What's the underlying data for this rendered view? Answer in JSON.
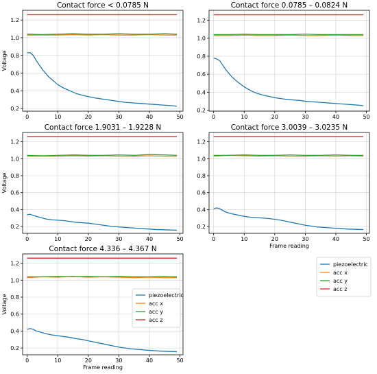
{
  "colors": {
    "piezoelectric": "#1f77b4",
    "acc x": "#ff7f0e",
    "acc y": "#2ca02c",
    "acc z": "#d62728"
  },
  "chart_data": [
    {
      "type": "line",
      "title": "Contact force < 0.0785 N",
      "ylabel": "Voltage",
      "xlabel": "",
      "xlim": [
        -1.5,
        51
      ],
      "ylim": [
        0.17,
        1.31
      ],
      "xticks": [
        "0",
        "10",
        "20",
        "30",
        "40",
        "50"
      ],
      "yticks": [
        "0.2",
        "0.4",
        "0.6",
        "0.8",
        "1.0",
        "1.2"
      ],
      "legend": "",
      "series": [
        {
          "key": "piezoelectric",
          "x": [
            0,
            1,
            2,
            3,
            4,
            5,
            6,
            7,
            8,
            10,
            12,
            14,
            16,
            18,
            20,
            22,
            24,
            26,
            28,
            30,
            32,
            34,
            36,
            38,
            40,
            42,
            44,
            46,
            48,
            49
          ],
          "y": [
            0.83,
            0.83,
            0.8,
            0.74,
            0.69,
            0.64,
            0.6,
            0.56,
            0.53,
            0.47,
            0.43,
            0.4,
            0.37,
            0.35,
            0.335,
            0.32,
            0.31,
            0.3,
            0.29,
            0.28,
            0.27,
            0.265,
            0.26,
            0.255,
            0.25,
            0.245,
            0.24,
            0.235,
            0.23,
            0.225
          ]
        },
        {
          "key": "acc x",
          "x": [
            0,
            5,
            10,
            15,
            20,
            25,
            30,
            35,
            40,
            45,
            49
          ],
          "y": [
            1.03,
            1.03,
            1.03,
            1.035,
            1.03,
            1.035,
            1.03,
            1.03,
            1.035,
            1.03,
            1.03
          ]
        },
        {
          "key": "acc y",
          "x": [
            0,
            5,
            10,
            15,
            20,
            25,
            30,
            35,
            40,
            45,
            49
          ],
          "y": [
            1.04,
            1.035,
            1.04,
            1.045,
            1.04,
            1.04,
            1.045,
            1.04,
            1.04,
            1.045,
            1.04
          ]
        },
        {
          "key": "acc z",
          "x": [
            0,
            5,
            10,
            15,
            20,
            25,
            30,
            35,
            40,
            45,
            49
          ],
          "y": [
            1.26,
            1.26,
            1.26,
            1.26,
            1.26,
            1.26,
            1.26,
            1.26,
            1.26,
            1.26,
            1.26
          ]
        }
      ]
    },
    {
      "type": "line",
      "title": "Contact force 0.0785 – 0.0824 N",
      "ylabel": "",
      "xlabel": "",
      "xlim": [
        -1.5,
        51
      ],
      "ylim": [
        0.19,
        1.31
      ],
      "xticks": [
        "0",
        "10",
        "20",
        "30",
        "40",
        "50"
      ],
      "yticks": [
        "0.2",
        "0.4",
        "0.6",
        "0.8",
        "1.0",
        "1.2"
      ],
      "legend": "",
      "series": [
        {
          "key": "piezoelectric",
          "x": [
            0,
            1,
            2,
            3,
            4,
            5,
            6,
            7,
            8,
            10,
            12,
            14,
            16,
            18,
            20,
            22,
            24,
            26,
            28,
            30,
            32,
            34,
            36,
            38,
            40,
            42,
            44,
            46,
            48,
            49
          ],
          "y": [
            0.78,
            0.77,
            0.75,
            0.7,
            0.65,
            0.61,
            0.57,
            0.54,
            0.51,
            0.46,
            0.42,
            0.39,
            0.37,
            0.355,
            0.34,
            0.33,
            0.32,
            0.315,
            0.31,
            0.3,
            0.295,
            0.29,
            0.285,
            0.28,
            0.275,
            0.27,
            0.265,
            0.26,
            0.255,
            0.25
          ]
        },
        {
          "key": "acc x",
          "x": [
            0,
            5,
            10,
            15,
            20,
            25,
            30,
            35,
            40,
            45,
            49
          ],
          "y": [
            1.03,
            1.03,
            1.035,
            1.03,
            1.03,
            1.035,
            1.03,
            1.03,
            1.035,
            1.03,
            1.03
          ]
        },
        {
          "key": "acc y",
          "x": [
            0,
            5,
            10,
            15,
            20,
            25,
            30,
            35,
            40,
            45,
            49
          ],
          "y": [
            1.04,
            1.04,
            1.045,
            1.04,
            1.04,
            1.04,
            1.045,
            1.04,
            1.04,
            1.04,
            1.04
          ]
        },
        {
          "key": "acc z",
          "x": [
            0,
            5,
            10,
            15,
            20,
            25,
            30,
            35,
            40,
            45,
            49
          ],
          "y": [
            1.26,
            1.26,
            1.26,
            1.26,
            1.26,
            1.26,
            1.26,
            1.26,
            1.26,
            1.26,
            1.26
          ]
        }
      ]
    },
    {
      "type": "line",
      "title": "Contact force 1.9031 – 1.9228 N",
      "ylabel": "Voltage",
      "xlabel": "",
      "xlim": [
        -1.5,
        51
      ],
      "ylim": [
        0.12,
        1.31
      ],
      "xticks": [
        "0",
        "10",
        "20",
        "30",
        "40",
        "50"
      ],
      "yticks": [
        "0.2",
        "0.4",
        "0.6",
        "0.8",
        "1.0",
        "1.2"
      ],
      "legend": "",
      "series": [
        {
          "key": "piezoelectric",
          "x": [
            0,
            1,
            2,
            4,
            6,
            8,
            10,
            12,
            14,
            16,
            18,
            20,
            22,
            24,
            26,
            28,
            30,
            32,
            34,
            36,
            38,
            40,
            42,
            44,
            46,
            48,
            49
          ],
          "y": [
            0.34,
            0.345,
            0.33,
            0.31,
            0.29,
            0.28,
            0.275,
            0.27,
            0.26,
            0.25,
            0.245,
            0.24,
            0.23,
            0.22,
            0.21,
            0.2,
            0.195,
            0.19,
            0.185,
            0.18,
            0.175,
            0.17,
            0.165,
            0.163,
            0.16,
            0.158,
            0.157
          ]
        },
        {
          "key": "acc x",
          "x": [
            0,
            5,
            10,
            15,
            20,
            25,
            30,
            35,
            40,
            45,
            49
          ],
          "y": [
            1.03,
            1.03,
            1.03,
            1.035,
            1.03,
            1.035,
            1.03,
            1.03,
            1.035,
            1.03,
            1.03
          ]
        },
        {
          "key": "acc y",
          "x": [
            0,
            5,
            10,
            15,
            20,
            25,
            30,
            35,
            40,
            45,
            49
          ],
          "y": [
            1.04,
            1.035,
            1.04,
            1.045,
            1.04,
            1.04,
            1.045,
            1.04,
            1.05,
            1.045,
            1.04
          ]
        },
        {
          "key": "acc z",
          "x": [
            0,
            5,
            10,
            15,
            20,
            25,
            30,
            35,
            40,
            45,
            49
          ],
          "y": [
            1.26,
            1.26,
            1.26,
            1.26,
            1.26,
            1.26,
            1.26,
            1.26,
            1.26,
            1.26,
            1.26
          ]
        }
      ]
    },
    {
      "type": "line",
      "title": "Contact force  3.0039 – 3.0235 N",
      "ylabel": "",
      "xlabel": "Frame reading",
      "xlim": [
        -1.5,
        51
      ],
      "ylim": [
        0.12,
        1.31
      ],
      "xticks": [
        "0",
        "10",
        "20",
        "30",
        "40",
        "50"
      ],
      "yticks": [
        "0.2",
        "0.4",
        "0.6",
        "0.8",
        "1.0",
        "1.2"
      ],
      "legend": "",
      "series": [
        {
          "key": "piezoelectric",
          "x": [
            0,
            1,
            2,
            3,
            4,
            6,
            8,
            10,
            12,
            14,
            16,
            18,
            20,
            22,
            24,
            26,
            28,
            30,
            32,
            34,
            36,
            38,
            40,
            42,
            44,
            46,
            48,
            49
          ],
          "y": [
            0.41,
            0.42,
            0.41,
            0.39,
            0.37,
            0.35,
            0.335,
            0.32,
            0.31,
            0.305,
            0.3,
            0.295,
            0.285,
            0.275,
            0.26,
            0.245,
            0.23,
            0.215,
            0.205,
            0.195,
            0.19,
            0.185,
            0.18,
            0.175,
            0.17,
            0.168,
            0.165,
            0.165
          ]
        },
        {
          "key": "acc x",
          "x": [
            0,
            5,
            10,
            15,
            20,
            25,
            30,
            35,
            40,
            45,
            49
          ],
          "y": [
            1.03,
            1.04,
            1.035,
            1.03,
            1.035,
            1.03,
            1.03,
            1.035,
            1.03,
            1.035,
            1.03
          ]
        },
        {
          "key": "acc y",
          "x": [
            0,
            5,
            10,
            15,
            20,
            25,
            30,
            35,
            40,
            45,
            49
          ],
          "y": [
            1.04,
            1.04,
            1.045,
            1.04,
            1.04,
            1.045,
            1.04,
            1.04,
            1.045,
            1.04,
            1.04
          ]
        },
        {
          "key": "acc z",
          "x": [
            0,
            5,
            10,
            15,
            20,
            25,
            30,
            35,
            40,
            45,
            49
          ],
          "y": [
            1.26,
            1.26,
            1.26,
            1.26,
            1.26,
            1.26,
            1.26,
            1.26,
            1.26,
            1.26,
            1.26
          ]
        }
      ]
    },
    {
      "type": "line",
      "title": "Contact force 4.336 – 4.367 N",
      "ylabel": "Voltage",
      "xlabel": "Frame reading",
      "xlim": [
        -1.5,
        51
      ],
      "ylim": [
        0.12,
        1.31
      ],
      "xticks": [
        "0",
        "10",
        "20",
        "30",
        "40",
        "50"
      ],
      "yticks": [
        "0.2",
        "0.4",
        "0.6",
        "0.8",
        "1.0",
        "1.2"
      ],
      "legend": "inside-right",
      "series": [
        {
          "key": "piezoelectric",
          "x": [
            0,
            1,
            2,
            3,
            4,
            6,
            8,
            10,
            12,
            14,
            16,
            18,
            20,
            22,
            24,
            26,
            28,
            30,
            32,
            34,
            36,
            38,
            40,
            42,
            44,
            46,
            48,
            49
          ],
          "y": [
            0.42,
            0.43,
            0.42,
            0.4,
            0.39,
            0.37,
            0.355,
            0.345,
            0.335,
            0.325,
            0.31,
            0.3,
            0.285,
            0.27,
            0.255,
            0.24,
            0.225,
            0.21,
            0.2,
            0.19,
            0.185,
            0.178,
            0.172,
            0.167,
            0.163,
            0.16,
            0.158,
            0.157
          ]
        },
        {
          "key": "acc x",
          "x": [
            0,
            5,
            10,
            15,
            20,
            25,
            30,
            35,
            40,
            45,
            49
          ],
          "y": [
            1.03,
            1.04,
            1.035,
            1.045,
            1.035,
            1.04,
            1.035,
            1.03,
            1.035,
            1.03,
            1.03
          ]
        },
        {
          "key": "acc y",
          "x": [
            0,
            5,
            10,
            15,
            20,
            25,
            30,
            35,
            40,
            45,
            49
          ],
          "y": [
            1.04,
            1.04,
            1.045,
            1.04,
            1.045,
            1.04,
            1.045,
            1.04,
            1.04,
            1.045,
            1.04
          ]
        },
        {
          "key": "acc z",
          "x": [
            0,
            5,
            10,
            15,
            20,
            25,
            30,
            35,
            40,
            45,
            49
          ],
          "y": [
            1.26,
            1.26,
            1.26,
            1.26,
            1.26,
            1.26,
            1.26,
            1.26,
            1.26,
            1.26,
            1.26
          ]
        }
      ]
    }
  ],
  "legend_entries": [
    "piezoelectric",
    "acc x",
    "acc y",
    "acc z"
  ],
  "outside_legend": "right-of-bottom-row"
}
